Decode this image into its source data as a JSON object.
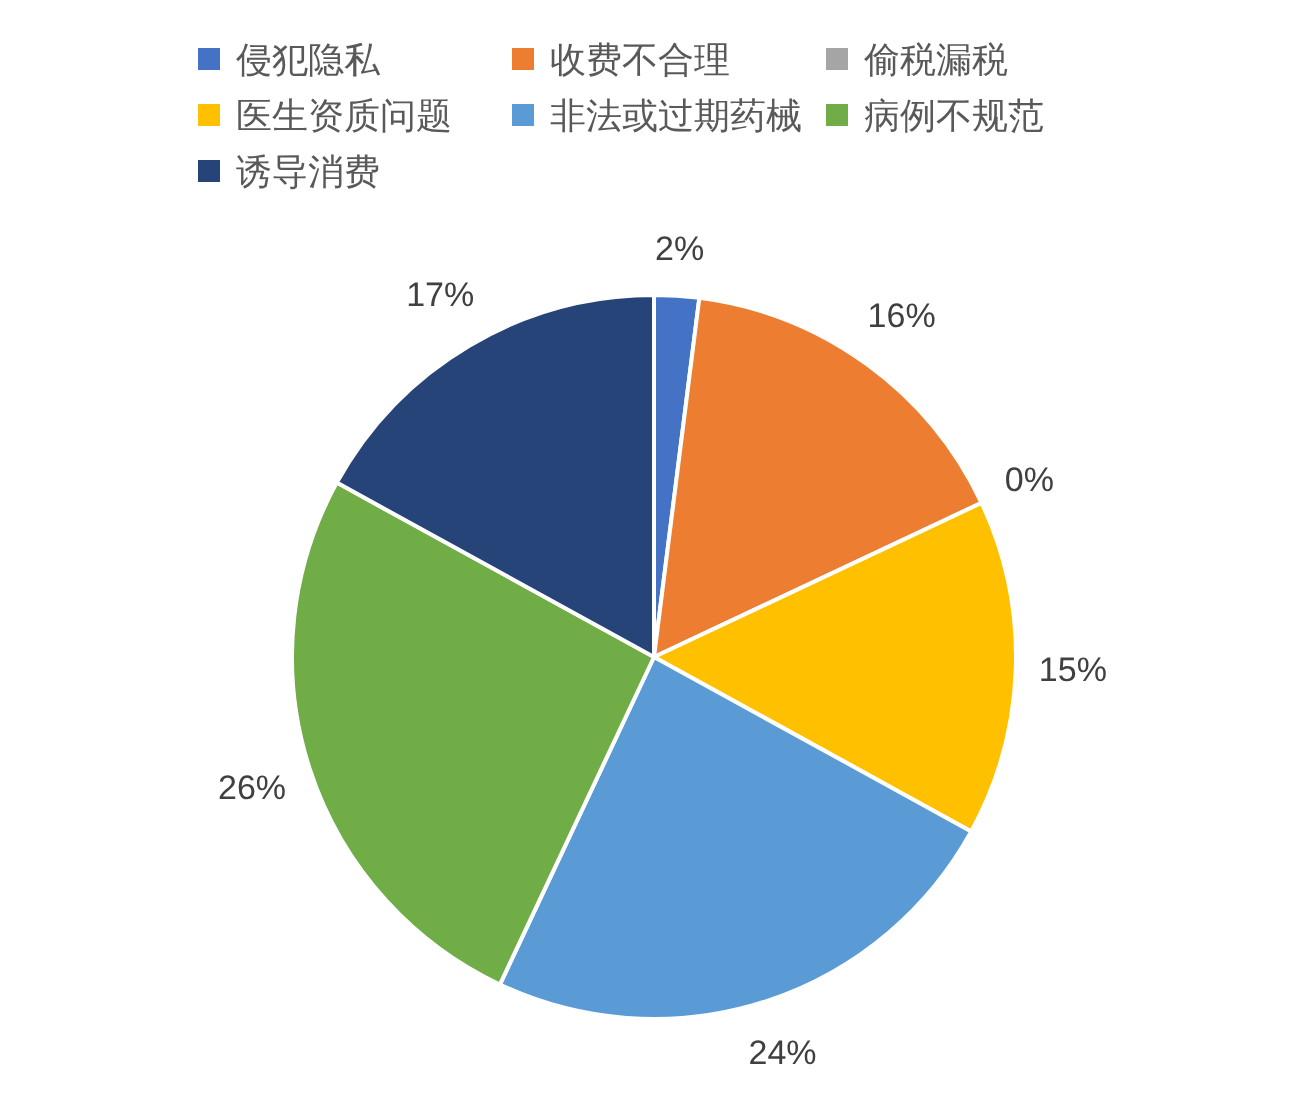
{
  "chart_data": {
    "type": "pie",
    "categories": [
      "侵犯隐私",
      "收费不合理",
      "偷税漏税",
      "医生资质问题",
      "非法或过期药械",
      "病例不规范",
      "诱导消费"
    ],
    "values": [
      2,
      16,
      0,
      15,
      24,
      26,
      17
    ],
    "colors": [
      "#4472c4",
      "#ed7d31",
      "#a5a5a5",
      "#ffc000",
      "#5b9bd5",
      "#70ad47",
      "#264478"
    ],
    "value_labels": [
      "2%",
      "16%",
      "0%",
      "15%",
      "24%",
      "26%",
      "17%"
    ],
    "legend": "top"
  }
}
